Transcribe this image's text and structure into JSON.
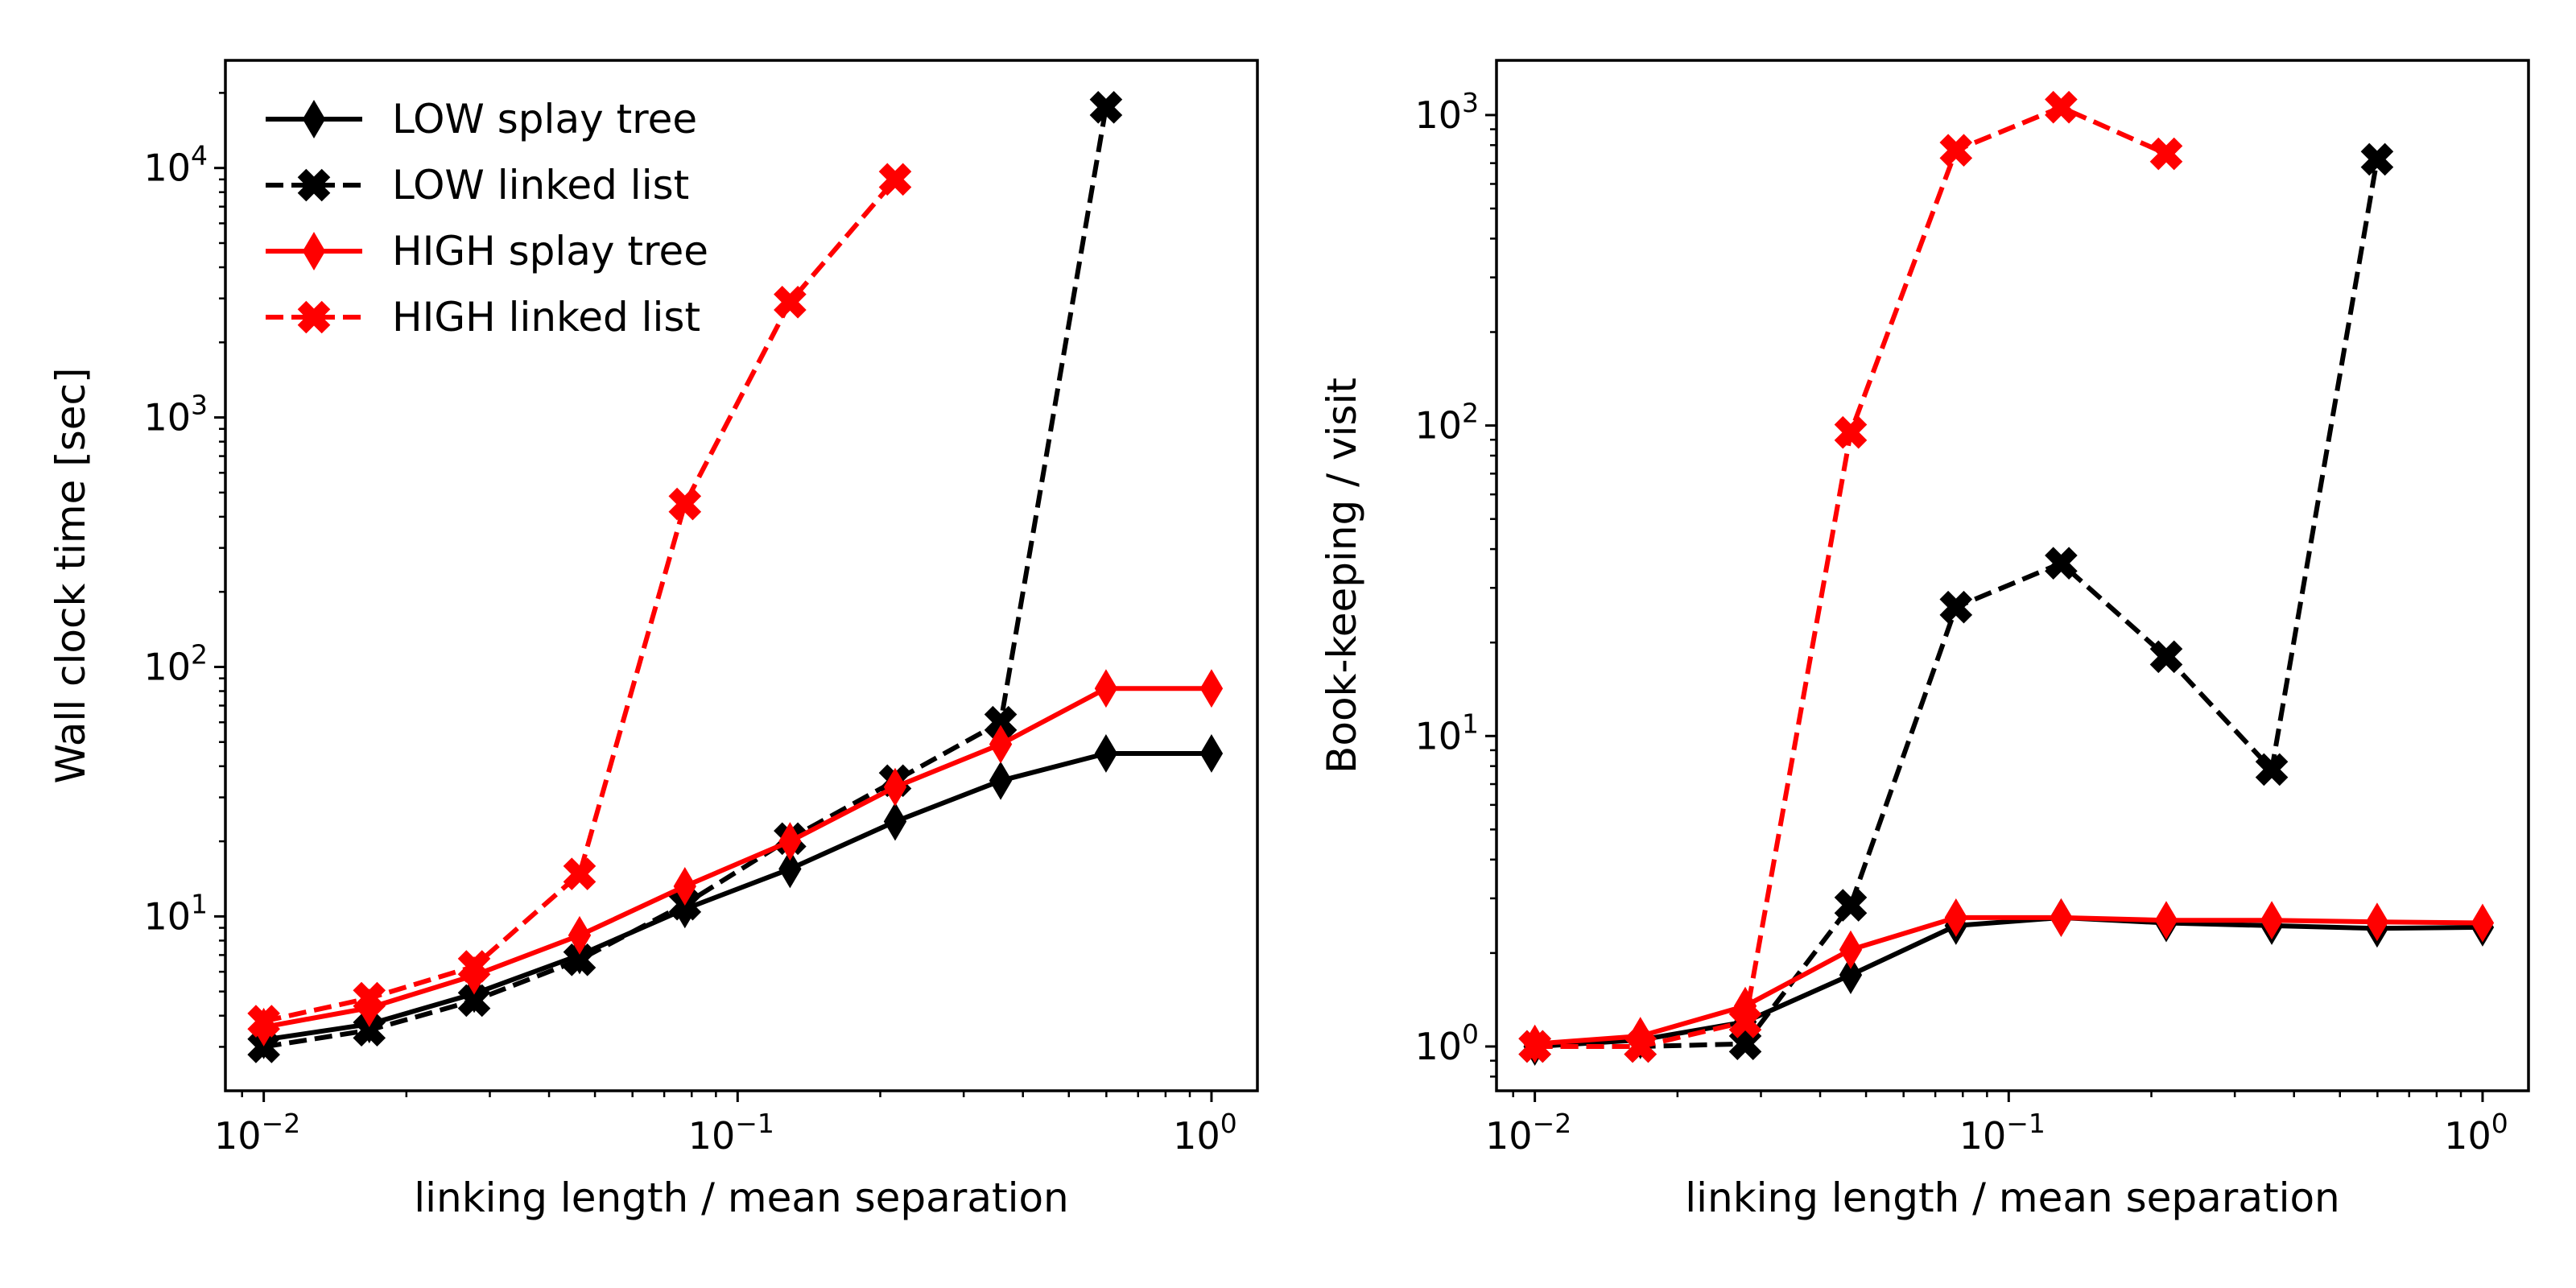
{
  "chart_data": [
    {
      "type": "line",
      "xscale": "log",
      "yscale": "log",
      "xlabel": "linking length / mean separation",
      "ylabel": "Wall clock time [sec]",
      "xlim": [
        0.0083,
        1.25
      ],
      "ylim": [
        2.0,
        27000
      ],
      "xticks": [
        {
          "value": 0.01,
          "base": "10",
          "exp": "−2"
        },
        {
          "value": 0.1,
          "base": "10",
          "exp": "−1"
        },
        {
          "value": 1,
          "base": "10",
          "exp": "0"
        }
      ],
      "yticks": [
        {
          "value": 10,
          "base": "10",
          "exp": "1"
        },
        {
          "value": 100,
          "base": "10",
          "exp": "2"
        },
        {
          "value": 1000,
          "base": "10",
          "exp": "3"
        },
        {
          "value": 10000,
          "base": "10",
          "exp": "4"
        }
      ],
      "legend": {
        "placement": "upper-left"
      },
      "series": [
        {
          "name": "LOW splay tree",
          "color": "#000000",
          "linestyle": "solid",
          "marker": "thin-diamond",
          "x": [
            0.01,
            0.0167,
            0.0278,
            0.0464,
            0.0774,
            0.129,
            0.215,
            0.359,
            0.599,
            1.0
          ],
          "y": [
            3.2,
            3.7,
            4.9,
            7.0,
            10.7,
            15.5,
            24,
            35,
            45,
            45
          ]
        },
        {
          "name": "LOW linked list",
          "color": "#000000",
          "linestyle": "dashed",
          "marker": "x-filled",
          "x": [
            0.01,
            0.0167,
            0.0278,
            0.0464,
            0.0774,
            0.129,
            0.215,
            0.359,
            0.599
          ],
          "y": [
            3.0,
            3.5,
            4.6,
            6.7,
            11.2,
            20.5,
            35,
            60,
            17500
          ]
        },
        {
          "name": "HIGH splay tree",
          "color": "#ff0000",
          "linestyle": "solid",
          "marker": "thin-diamond",
          "x": [
            0.01,
            0.0167,
            0.0278,
            0.0464,
            0.0774,
            0.129,
            0.215,
            0.359,
            0.599,
            1.0
          ],
          "y": [
            3.6,
            4.3,
            5.8,
            8.4,
            13.2,
            20,
            33,
            49,
            82,
            82
          ]
        },
        {
          "name": "HIGH linked list",
          "color": "#ff0000",
          "linestyle": "dashed",
          "marker": "x-filled",
          "x": [
            0.01,
            0.0167,
            0.0278,
            0.0464,
            0.0774,
            0.129,
            0.215
          ],
          "y": [
            3.8,
            4.7,
            6.3,
            14.8,
            450,
            2900,
            9000
          ]
        }
      ]
    },
    {
      "type": "line",
      "xscale": "log",
      "yscale": "log",
      "xlabel": "linking length / mean separation",
      "ylabel": "Book-keeping / visit",
      "xlim": [
        0.0083,
        1.25
      ],
      "ylim": [
        0.72,
        1500
      ],
      "xticks": [
        {
          "value": 0.01,
          "base": "10",
          "exp": "−2"
        },
        {
          "value": 0.1,
          "base": "10",
          "exp": "−1"
        },
        {
          "value": 1,
          "base": "10",
          "exp": "0"
        }
      ],
      "yticks": [
        {
          "value": 1,
          "base": "10",
          "exp": "0"
        },
        {
          "value": 10,
          "base": "10",
          "exp": "1"
        },
        {
          "value": 100,
          "base": "10",
          "exp": "2"
        },
        {
          "value": 1000,
          "base": "10",
          "exp": "3"
        }
      ],
      "series": [
        {
          "name": "LOW splay tree",
          "color": "#000000",
          "linestyle": "solid",
          "marker": "thin-diamond",
          "x": [
            0.01,
            0.0167,
            0.0278,
            0.0464,
            0.0774,
            0.129,
            0.215,
            0.359,
            0.599,
            1.0
          ],
          "y": [
            1.0,
            1.05,
            1.2,
            1.7,
            2.45,
            2.6,
            2.5,
            2.45,
            2.4,
            2.42
          ]
        },
        {
          "name": "LOW linked list",
          "color": "#000000",
          "linestyle": "dashed",
          "marker": "x-filled",
          "x": [
            0.01,
            0.0167,
            0.0278,
            0.0464,
            0.0774,
            0.129,
            0.215,
            0.359,
            0.599
          ],
          "y": [
            1.0,
            1.0,
            1.02,
            2.85,
            26,
            36,
            18,
            7.8,
            720
          ]
        },
        {
          "name": "HIGH splay tree",
          "color": "#ff0000",
          "linestyle": "solid",
          "marker": "thin-diamond",
          "x": [
            0.01,
            0.0167,
            0.0278,
            0.0464,
            0.0774,
            0.129,
            0.215,
            0.359,
            0.599,
            1.0
          ],
          "y": [
            1.02,
            1.08,
            1.35,
            2.05,
            2.6,
            2.6,
            2.55,
            2.55,
            2.52,
            2.5
          ]
        },
        {
          "name": "HIGH linked list",
          "color": "#ff0000",
          "linestyle": "dashed",
          "marker": "x-filled",
          "x": [
            0.01,
            0.0167,
            0.0278,
            0.0464,
            0.0774,
            0.129,
            0.215
          ],
          "y": [
            1.0,
            1.0,
            1.2,
            95,
            770,
            1060,
            750
          ]
        }
      ]
    }
  ]
}
